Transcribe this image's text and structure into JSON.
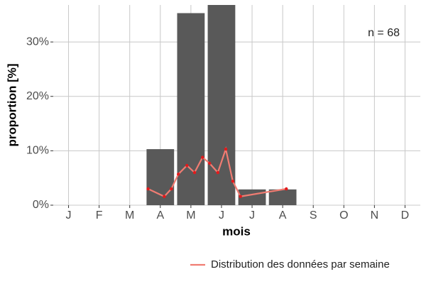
{
  "chart_data": {
    "type": "bar",
    "categories": [
      "J",
      "F",
      "M",
      "A",
      "M",
      "J",
      "J",
      "A",
      "S",
      "O",
      "N",
      "D"
    ],
    "values": [
      0,
      0,
      0,
      10.3,
      35.3,
      36.8,
      2.9,
      2.9,
      0,
      0,
      0,
      0
    ],
    "color": "#595959",
    "xlabel": "mois",
    "ylabel": "proportion [%]",
    "ylim": [
      0,
      36.8
    ],
    "yticks": [
      {
        "value": 0,
        "label": "0%"
      },
      {
        "value": 10,
        "label": "10%"
      },
      {
        "value": 20,
        "label": "20%"
      },
      {
        "value": 30,
        "label": "30%"
      }
    ],
    "grid": true,
    "annotation": "n = 68",
    "legend": "bottom-right",
    "line": {
      "name": "Distribution des données par semaine",
      "color": "#f07c72",
      "point_color": "#e31a1c",
      "x": [
        3.6,
        4.13,
        4.36,
        4.59,
        4.87,
        5.12,
        5.38,
        5.61,
        5.88,
        6.14,
        6.37,
        6.62,
        8.12
      ],
      "values": [
        3.0,
        1.6,
        3.0,
        5.7,
        7.3,
        6.0,
        8.8,
        7.7,
        6.0,
        10.3,
        4.4,
        1.6,
        3.0
      ]
    }
  }
}
